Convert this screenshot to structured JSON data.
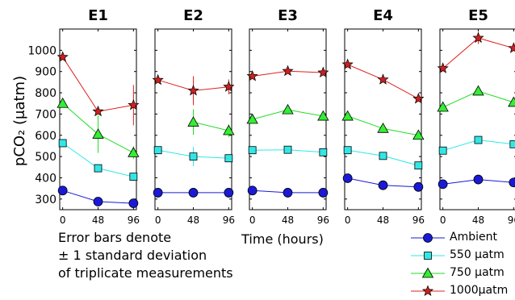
{
  "chart_data": {
    "type": "line",
    "ylabel": "pCO₂ (μatm)",
    "xlabel": "Time (hours)",
    "x": [
      0,
      48,
      96
    ],
    "xticks": [
      "0",
      "48",
      "96"
    ],
    "ylim": [
      250,
      1100
    ],
    "yticks": [
      "300",
      "400",
      "500",
      "600",
      "700",
      "800",
      "900",
      "1000"
    ],
    "yticks_values": [
      300,
      400,
      500,
      600,
      700,
      800,
      900,
      1000
    ],
    "grid": false,
    "colors": {
      "ambient": "#1a1ad6",
      "t550": "#2ee8e8",
      "t750": "#22dd22",
      "t1000": "#e02020",
      "ambient_fill": "#1a1ad6",
      "t550_fill": "#33e6e6",
      "t750_fill": "#33ee33",
      "t1000_fill": "#cc2020"
    },
    "legend": [
      {
        "key": "ambient",
        "label": "Ambient",
        "marker": "circle"
      },
      {
        "key": "t550",
        "label": "550 μatm",
        "marker": "square"
      },
      {
        "key": "t750",
        "label": "750 μatm",
        "marker": "triangle"
      },
      {
        "key": "t1000",
        "label": "1000μatm",
        "marker": "star"
      }
    ],
    "panels": [
      {
        "title": "E1",
        "series": [
          {
            "key": "ambient",
            "values": [
              340,
              288,
              280
            ],
            "err": [
              0,
              0,
              0
            ]
          },
          {
            "key": "t550",
            "values": [
              563,
              445,
              405
            ],
            "err": [
              0,
              0,
              20
            ]
          },
          {
            "key": "t750",
            "values": [
              750,
              605,
              518
            ],
            "err": [
              0,
              88,
              30
            ]
          },
          {
            "key": "t1000",
            "values": [
              968,
              712,
              742
            ],
            "err": [
              0,
              0,
              95
            ]
          }
        ]
      },
      {
        "title": "E2",
        "series": [
          {
            "key": "ambient",
            "values": [
              330,
              330,
              330
            ],
            "err": [
              0,
              0,
              0
            ]
          },
          {
            "key": "t550",
            "values": [
              530,
              500,
              492
            ],
            "err": [
              0,
              45,
              0
            ]
          },
          {
            "key": "t750",
            "values": [
              null,
              662,
              622
            ],
            "err": [
              0,
              60,
              30
            ]
          },
          {
            "key": "t1000",
            "values": [
              860,
              810,
              828
            ],
            "err": [
              0,
              68,
              35
            ]
          }
        ]
      },
      {
        "title": "E3",
        "series": [
          {
            "key": "ambient",
            "values": [
              340,
              330,
              330
            ],
            "err": [
              0,
              0,
              0
            ]
          },
          {
            "key": "t550",
            "values": [
              530,
              532,
              520
            ],
            "err": [
              0,
              0,
              0
            ]
          },
          {
            "key": "t750",
            "values": [
              675,
              720,
              690
            ],
            "err": [
              0,
              0,
              0
            ]
          },
          {
            "key": "t1000",
            "values": [
              878,
              902,
              895
            ],
            "err": [
              0,
              0,
              0
            ]
          }
        ]
      },
      {
        "title": "E4",
        "series": [
          {
            "key": "ambient",
            "values": [
              398,
              365,
              357
            ],
            "err": [
              0,
              0,
              0
            ]
          },
          {
            "key": "t550",
            "values": [
              530,
              503,
              458
            ],
            "err": [
              0,
              0,
              0
            ]
          },
          {
            "key": "t750",
            "values": [
              690,
              632,
              600
            ],
            "err": [
              0,
              0,
              0
            ]
          },
          {
            "key": "t1000",
            "values": [
              933,
              862,
              772
            ],
            "err": [
              0,
              0,
              0
            ]
          }
        ]
      },
      {
        "title": "E5",
        "series": [
          {
            "key": "ambient",
            "values": [
              370,
              392,
              378
            ],
            "err": [
              0,
              0,
              0
            ]
          },
          {
            "key": "t550",
            "values": [
              528,
              578,
              558
            ],
            "err": [
              0,
              0,
              0
            ]
          },
          {
            "key": "t750",
            "values": [
              732,
              808,
              755
            ],
            "err": [
              0,
              0,
              0
            ]
          },
          {
            "key": "t1000",
            "values": [
              915,
              1058,
              1010
            ],
            "err": [
              0,
              28,
              0
            ]
          }
        ]
      }
    ]
  },
  "notes": {
    "line1": "Error bars denote",
    "line2": "± 1 standard deviation",
    "line3": "of triplicate measurements"
  }
}
